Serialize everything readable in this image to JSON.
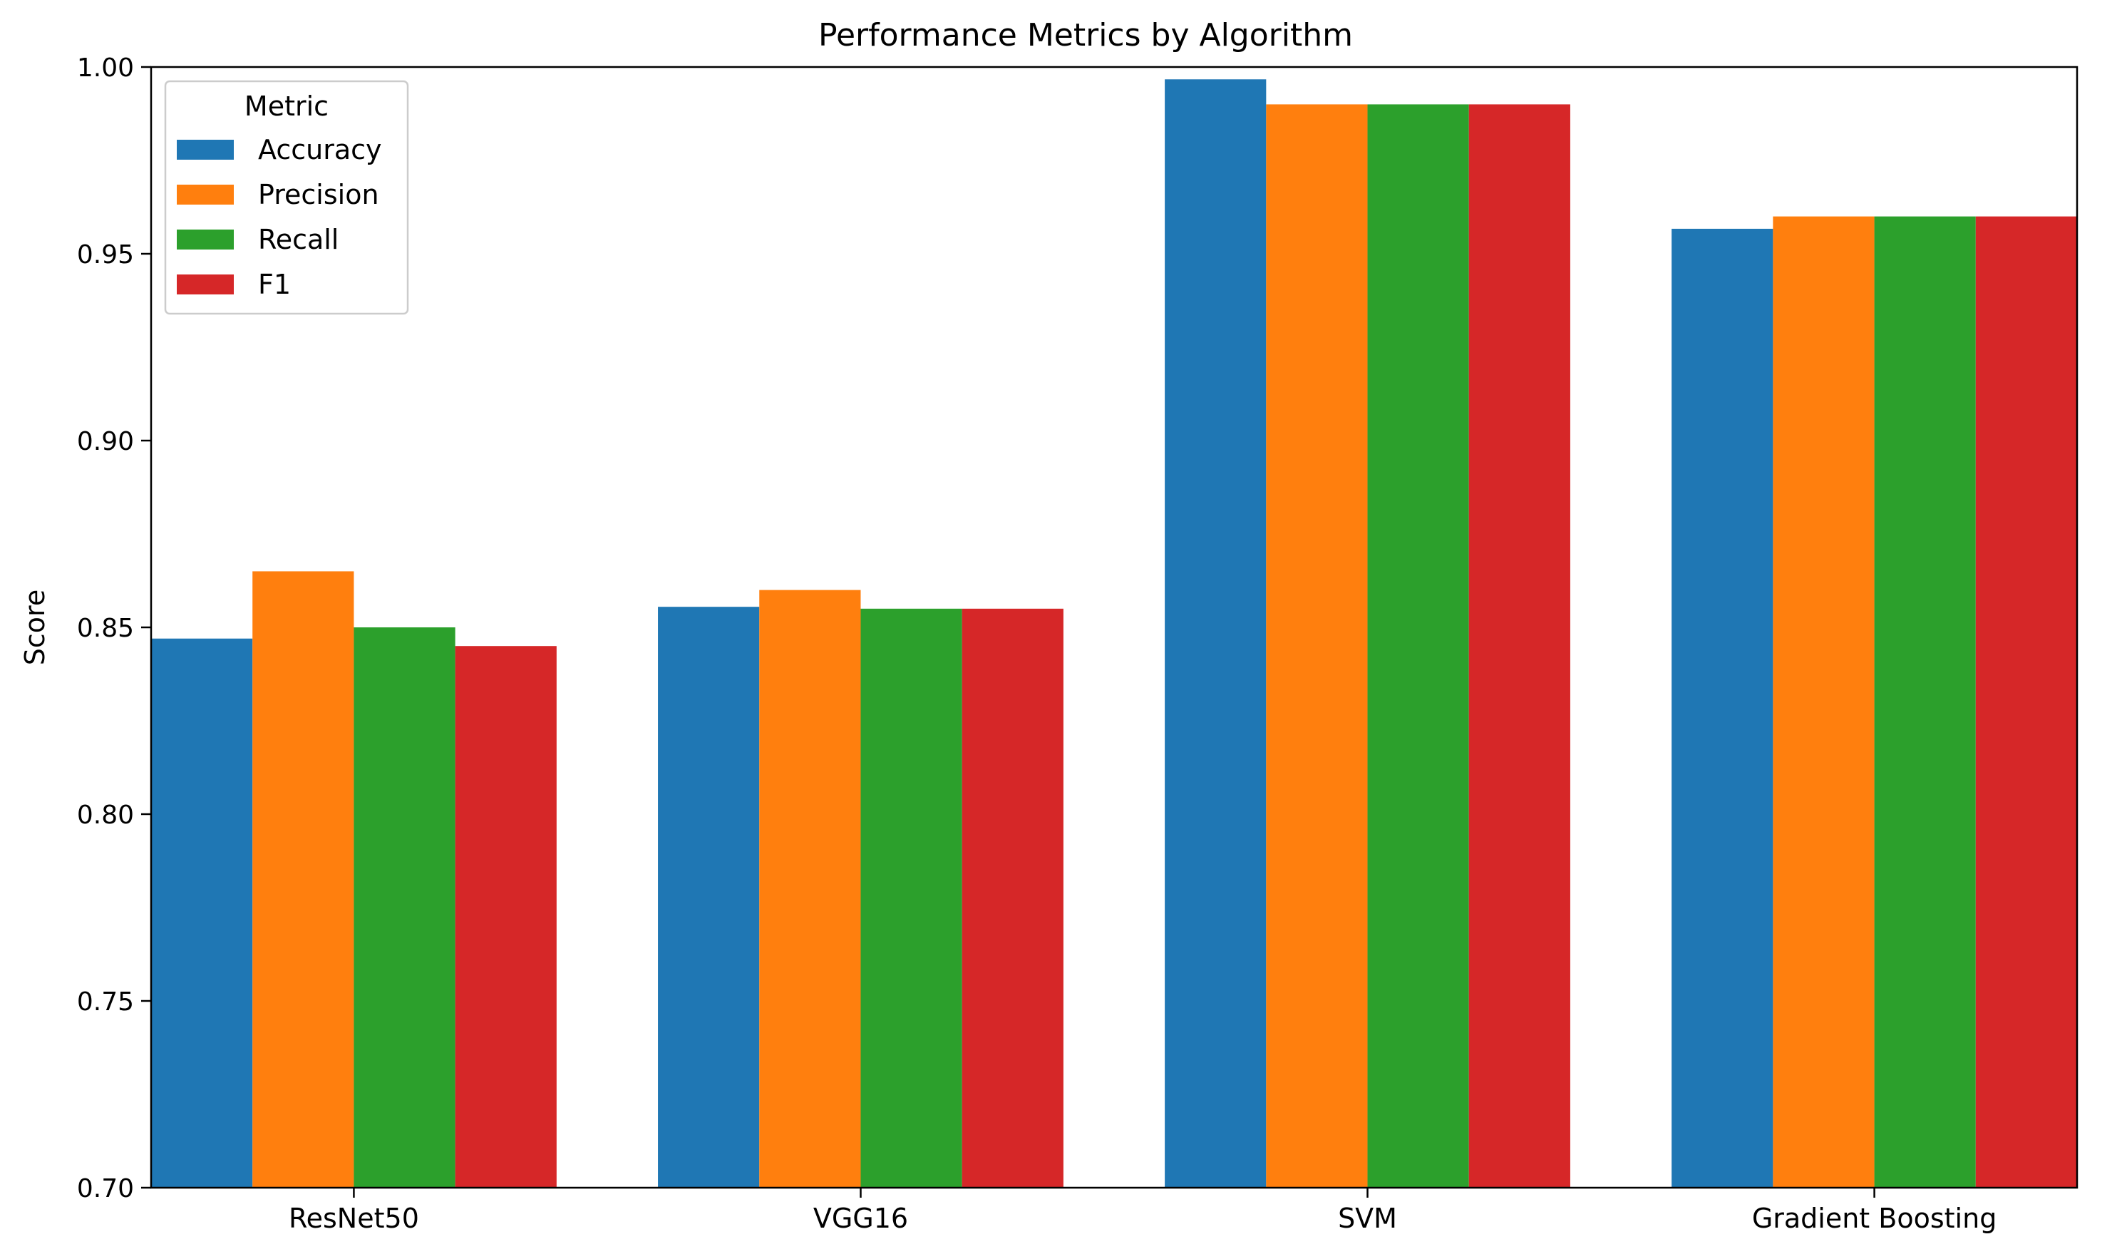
{
  "chart_data": {
    "type": "bar",
    "title": "Performance Metrics by Algorithm",
    "xlabel": "",
    "ylabel": "Score",
    "ylim": [
      0.7,
      1.0
    ],
    "yticks": [
      "0.70",
      "0.75",
      "0.80",
      "0.85",
      "0.90",
      "0.95",
      "1.00"
    ],
    "grid": false,
    "categories": [
      "ResNet50",
      "VGG16",
      "SVM",
      "Gradient Boosting"
    ],
    "legend": {
      "title": "Metric",
      "position": "top-left"
    },
    "series": [
      {
        "name": "Accuracy",
        "color": "#1f77b4",
        "values": [
          0.847,
          0.8555,
          0.9967,
          0.9567
        ]
      },
      {
        "name": "Precision",
        "color": "#ff7f0e",
        "values": [
          0.865,
          0.86,
          0.99,
          0.96
        ]
      },
      {
        "name": "Recall",
        "color": "#2ca02c",
        "values": [
          0.85,
          0.855,
          0.99,
          0.96
        ]
      },
      {
        "name": "F1",
        "color": "#d62728",
        "values": [
          0.845,
          0.855,
          0.99,
          0.96
        ]
      }
    ]
  }
}
